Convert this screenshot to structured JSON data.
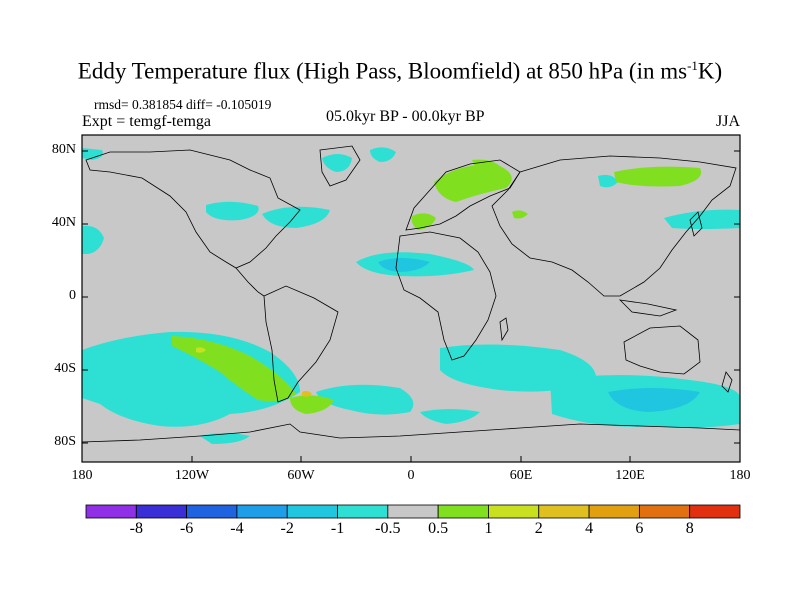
{
  "title": {
    "main": "Eddy Temperature flux (High Pass, Bloomfield) at 850 hPa (in ms",
    "sup": "-1",
    "tail": "K)"
  },
  "stats": "rmsd= 0.381854 diff= -0.105019",
  "expt": "Expt = temgf-temga",
  "period": "05.0kyr BP - 00.0kyr BP",
  "season": "JJA",
  "y_ticks": [
    "80N",
    "40N",
    "0",
    "40S",
    "80S"
  ],
  "x_ticks": [
    "180",
    "120W",
    "60W",
    "0",
    "60E",
    "120E",
    "180"
  ],
  "colorbar": {
    "labels": [
      "-8",
      "-6",
      "-4",
      "-2",
      "-1",
      "-0.5",
      "0.5",
      "1",
      "2",
      "4",
      "6",
      "8"
    ],
    "colors": [
      "#8f2fe6",
      "#3a2fd6",
      "#1f63e0",
      "#1f9ee8",
      "#20c6e0",
      "#2ee0d4",
      "#c8c8c8",
      "#80e020",
      "#c8e020",
      "#e0c020",
      "#e0a010",
      "#e07010",
      "#e03010"
    ]
  },
  "map_colors": {
    "background": "#c8c8c8",
    "coast": "#000000"
  }
}
